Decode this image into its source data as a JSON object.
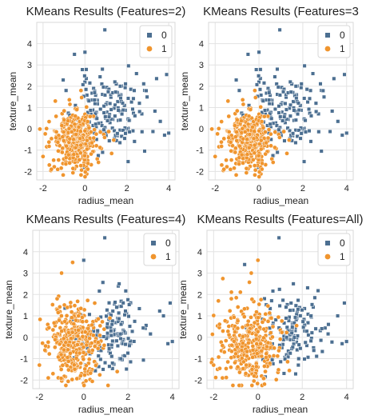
{
  "chart_data": [
    {
      "type": "scatter",
      "title": "KMeans Results (Features=2)",
      "xlabel": "radius_mean",
      "ylabel": "texture_mean",
      "xlim": [
        -2.3,
        4.3
      ],
      "ylim": [
        -2.4,
        5.0
      ],
      "xticks": [
        -2,
        0,
        2,
        4
      ],
      "yticks": [
        -2,
        -1,
        0,
        1,
        2,
        3,
        4
      ],
      "grid": true,
      "legend": {
        "position": "top-right"
      },
      "series": [
        {
          "name": "0",
          "color": "#4c6f91",
          "marker": "square",
          "count": 170,
          "center": [
            1.1,
            0.75
          ],
          "spread": [
            0.8,
            0.9
          ],
          "seed": 11,
          "extra_points": [
            [
              0.95,
              4.65
            ],
            [
              3.9,
              2.55
            ],
            [
              2.6,
              1.2
            ],
            [
              3.6,
              0.35
            ],
            [
              3.8,
              -0.3
            ],
            [
              4.0,
              -0.2
            ],
            [
              -0.9,
              1.8
            ],
            [
              0.0,
              3.6
            ],
            [
              -0.5,
              3.5
            ]
          ]
        },
        {
          "name": "1",
          "color": "#f0952e",
          "marker": "circle",
          "count": 330,
          "center": [
            -0.45,
            -0.5
          ],
          "spread": [
            0.55,
            0.7
          ],
          "seed": 22,
          "extra_points": [
            [
              -2.0,
              -1.3
            ],
            [
              -1.6,
              -1.9
            ],
            [
              -1.7,
              -1.7
            ]
          ]
        }
      ]
    },
    {
      "type": "scatter",
      "title": "KMeans Results (Features=3",
      "xlabel": "radius_mean",
      "ylabel": "texture_mean",
      "xlim": [
        -2.3,
        4.3
      ],
      "ylim": [
        -2.4,
        5.0
      ],
      "xticks": [
        -2,
        0,
        2,
        4
      ],
      "yticks": [
        -2,
        -1,
        0,
        1,
        2,
        3,
        4
      ],
      "grid": true,
      "legend": {
        "position": "top-right"
      },
      "series": [
        {
          "name": "0",
          "color": "#4c6f91",
          "marker": "square",
          "count": 170,
          "center": [
            1.1,
            0.75
          ],
          "spread": [
            0.8,
            0.9
          ],
          "seed": 11,
          "extra_points": [
            [
              0.95,
              4.65
            ],
            [
              3.9,
              2.55
            ],
            [
              2.6,
              1.2
            ],
            [
              3.6,
              0.35
            ],
            [
              3.8,
              -0.3
            ],
            [
              4.0,
              -0.2
            ],
            [
              -0.9,
              1.8
            ],
            [
              0.0,
              3.6
            ],
            [
              -0.5,
              3.5
            ]
          ]
        },
        {
          "name": "1",
          "color": "#f0952e",
          "marker": "circle",
          "count": 330,
          "center": [
            -0.45,
            -0.5
          ],
          "spread": [
            0.55,
            0.7
          ],
          "seed": 22,
          "extra_points": [
            [
              -2.0,
              -1.3
            ],
            [
              -1.6,
              -1.9
            ],
            [
              -1.7,
              -1.7
            ]
          ]
        }
      ]
    },
    {
      "type": "scatter",
      "title": "KMeans Results (Features=4)",
      "xlabel": "radius_mean",
      "ylabel": "texture_mean",
      "xlim": [
        -2.3,
        4.3
      ],
      "ylim": [
        -2.4,
        5.0
      ],
      "xticks": [
        -2,
        0,
        2,
        4
      ],
      "yticks": [
        -2,
        -1,
        0,
        1,
        2,
        3,
        4
      ],
      "grid": true,
      "legend": {
        "position": "top-right"
      },
      "series": [
        {
          "name": "0",
          "color": "#4c6f91",
          "marker": "square",
          "count": 160,
          "center": [
            1.2,
            0.2
          ],
          "spread": [
            0.8,
            0.9
          ],
          "seed": 33,
          "extra_points": [
            [
              0.95,
              4.65
            ],
            [
              3.9,
              1.6
            ],
            [
              3.6,
              1.0
            ],
            [
              3.8,
              -0.3
            ],
            [
              4.0,
              -0.2
            ],
            [
              1.6,
              2.5
            ],
            [
              0.0,
              3.6
            ]
          ]
        },
        {
          "name": "1",
          "color": "#f0952e",
          "marker": "circle",
          "count": 340,
          "center": [
            -0.45,
            -0.4
          ],
          "spread": [
            0.6,
            0.85
          ],
          "seed": 44,
          "extra_points": [
            [
              -2.0,
              -1.3
            ],
            [
              -1.6,
              -1.9
            ],
            [
              -1.0,
              3.0
            ],
            [
              -0.5,
              3.5
            ],
            [
              -1.2,
              1.8
            ]
          ]
        }
      ]
    },
    {
      "type": "scatter",
      "title": "KMeans Results (Features=All)",
      "xlabel": "radius_mean",
      "ylabel": "texture_mean",
      "xlim": [
        -2.3,
        4.3
      ],
      "ylim": [
        -2.4,
        5.0
      ],
      "xticks": [
        -2,
        0,
        2,
        4
      ],
      "yticks": [
        -2,
        -1,
        0,
        1,
        2,
        3,
        4
      ],
      "grid": true,
      "legend": {
        "position": "top-right"
      },
      "series": [
        {
          "name": "0",
          "color": "#4c6f91",
          "marker": "square",
          "count": 150,
          "center": [
            1.4,
            0.3
          ],
          "spread": [
            0.8,
            0.9
          ],
          "seed": 55,
          "extra_points": [
            [
              0.95,
              4.65
            ],
            [
              3.9,
              1.6
            ],
            [
              3.6,
              1.0
            ],
            [
              3.8,
              -0.3
            ],
            [
              4.0,
              -0.2
            ],
            [
              1.6,
              2.5
            ],
            [
              -0.6,
              3.4
            ]
          ]
        },
        {
          "name": "1",
          "color": "#f0952e",
          "marker": "circle",
          "count": 350,
          "center": [
            -0.3,
            -0.35
          ],
          "spread": [
            0.65,
            0.85
          ],
          "seed": 66,
          "extra_points": [
            [
              -2.0,
              -1.3
            ],
            [
              -1.6,
              -1.9
            ],
            [
              0.0,
              3.6
            ],
            [
              -0.3,
              3.0
            ],
            [
              -1.2,
              1.8
            ]
          ]
        }
      ]
    }
  ]
}
